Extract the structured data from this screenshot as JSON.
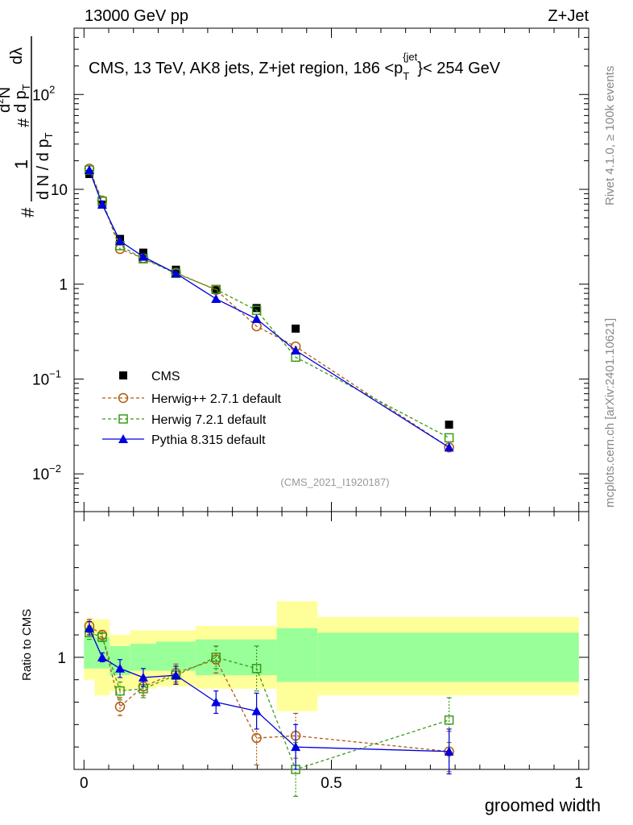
{
  "header": {
    "beam": "13000 GeV pp",
    "process": "Z+Jet",
    "plot_title": "CMS, 13 TeV, AK8 jets, Z+jet region, 186 <p",
    "plot_title_sup": "{jet",
    "plot_title_sub": "T",
    "plot_title_tail": "}< 254 GeV",
    "side_label_rivet": "Rivet 4.1.0, ≥ 100k events",
    "side_label_mcplots": "mcplots.cern.ch [arXiv:2401.10621]",
    "analysis_id": "(CMS_2021_I1920187)"
  },
  "colors": {
    "cms": "#000000",
    "herwigpp": "#b05a10",
    "herwig7": "#3a9a1a",
    "pythia": "#0000e0",
    "band_inner": "#99ff99",
    "band_outer": "#ffff99"
  },
  "chart_data": [
    {
      "type": "scatter",
      "yscale": "log",
      "title": "CMS, 13 TeV, AK8 jets, Z+jet region, 186 <pT{jet}< 254 GeV",
      "ylabel_parts": [
        "#",
        "1",
        "d N / d p",
        "T",
        "#",
        "d p",
        "T",
        "d",
        "2",
        "N",
        "dλ"
      ],
      "ylim": [
        0.004,
        500
      ],
      "yticks": [
        {
          "value": 0.01,
          "base": "10",
          "exp": "−2"
        },
        {
          "value": 0.1,
          "base": "10",
          "exp": "−1"
        },
        {
          "value": 1,
          "label": "1"
        },
        {
          "value": 10,
          "label": "10"
        },
        {
          "value": 100,
          "base": "10",
          "exp": "2"
        }
      ],
      "xlim": [
        -0.02,
        1.02
      ],
      "legend_position": "bottom-left",
      "series": [
        {
          "name": "CMS",
          "key": "cms",
          "marker": "square-filled",
          "line": "none",
          "x": [
            0.0108,
            0.0368,
            0.0728,
            0.1198,
            0.1858,
            0.2668,
            0.3488,
            0.4278,
            0.7378
          ],
          "y": [
            14.5,
            6.9,
            3.0,
            2.15,
            1.42,
            0.88,
            0.56,
            0.34,
            0.033
          ]
        },
        {
          "name": "Herwig++ 2.7.1 default",
          "key": "herwigpp",
          "marker": "circle-open",
          "line": "dashed",
          "x": [
            0.0108,
            0.0368,
            0.0728,
            0.1198,
            0.1858,
            0.2668,
            0.3488,
            0.4278,
            0.7378
          ],
          "y": [
            16.5,
            7.6,
            2.35,
            1.88,
            1.32,
            0.87,
            0.36,
            0.22,
            0.019
          ]
        },
        {
          "name": "Herwig 7.2.1 default",
          "key": "herwig7",
          "marker": "square-open",
          "line": "dashed",
          "x": [
            0.0108,
            0.0368,
            0.0728,
            0.1198,
            0.1858,
            0.2668,
            0.3488,
            0.4278,
            0.7378
          ],
          "y": [
            16.0,
            7.5,
            2.55,
            1.85,
            1.3,
            0.88,
            0.53,
            0.17,
            0.024
          ]
        },
        {
          "name": "Pythia 8.315 default",
          "key": "pythia",
          "marker": "triangle-filled",
          "line": "solid",
          "x": [
            0.0108,
            0.0368,
            0.0728,
            0.1198,
            0.1858,
            0.2668,
            0.3488,
            0.4278,
            0.7378
          ],
          "y": [
            16.0,
            6.9,
            2.85,
            1.95,
            1.3,
            0.7,
            0.43,
            0.2,
            0.019
          ]
        }
      ]
    },
    {
      "type": "scatter",
      "ylabel": "Ratio to CMS",
      "ylim": [
        0.5,
        1.65
      ],
      "yticks": [
        {
          "value": 1,
          "label": "1"
        }
      ],
      "xlim": [
        -0.02,
        1.02
      ],
      "xlabel": "groomed width",
      "xticks": [
        {
          "value": 0,
          "label": "0"
        },
        {
          "value": 0.5,
          "label": "0.5"
        },
        {
          "value": 1,
          "label": "1"
        }
      ],
      "bands": {
        "edges": [
          0.0,
          0.0216,
          0.052,
          0.0936,
          0.146,
          0.2256,
          0.308,
          0.3896,
          0.472,
          1.0
        ],
        "inner_low": [
          0.95,
          0.95,
          0.92,
          0.94,
          0.94,
          0.92,
          0.92,
          0.89,
          0.89
        ],
        "inner_high": [
          1.09,
          1.09,
          1.05,
          1.06,
          1.07,
          1.08,
          1.08,
          1.13,
          1.11
        ],
        "outer_low": [
          0.9,
          0.83,
          0.85,
          0.86,
          0.87,
          0.86,
          0.86,
          0.76,
          0.83
        ],
        "outer_high": [
          1.17,
          1.17,
          1.1,
          1.12,
          1.12,
          1.14,
          1.14,
          1.25,
          1.18
        ]
      },
      "series": [
        {
          "key": "herwigpp",
          "marker": "circle-open",
          "line": "dashed",
          "x": [
            0.0108,
            0.0368,
            0.0728,
            0.1198,
            0.1858,
            0.2668,
            0.3488,
            0.4278,
            0.7378
          ],
          "y": [
            1.14,
            1.1,
            0.78,
            0.87,
            0.93,
            0.99,
            0.64,
            0.65,
            0.58
          ],
          "err": [
            0.03,
            0.02,
            0.04,
            0.04,
            0.04,
            0.06,
            0.12,
            0.1,
            0.09
          ]
        },
        {
          "key": "herwig7",
          "marker": "square-open",
          "line": "dashed",
          "x": [
            0.0108,
            0.0368,
            0.0728,
            0.1198,
            0.1858,
            0.2668,
            0.3488,
            0.4278,
            0.7378
          ],
          "y": [
            1.11,
            1.09,
            0.85,
            0.86,
            0.92,
            1.0,
            0.95,
            0.5,
            0.72
          ],
          "err": [
            0.03,
            0.02,
            0.04,
            0.04,
            0.04,
            0.05,
            0.1,
            0.12,
            0.1
          ]
        },
        {
          "key": "pythia",
          "marker": "triangle-filled",
          "line": "solid",
          "x": [
            0.0108,
            0.0368,
            0.0728,
            0.1198,
            0.1858,
            0.2668,
            0.3488,
            0.4278,
            0.7378
          ],
          "y": [
            1.13,
            1.0,
            0.95,
            0.91,
            0.92,
            0.8,
            0.76,
            0.6,
            0.58
          ],
          "err": [
            0.03,
            0.02,
            0.04,
            0.04,
            0.04,
            0.05,
            0.08,
            0.1,
            0.1
          ]
        }
      ]
    }
  ]
}
